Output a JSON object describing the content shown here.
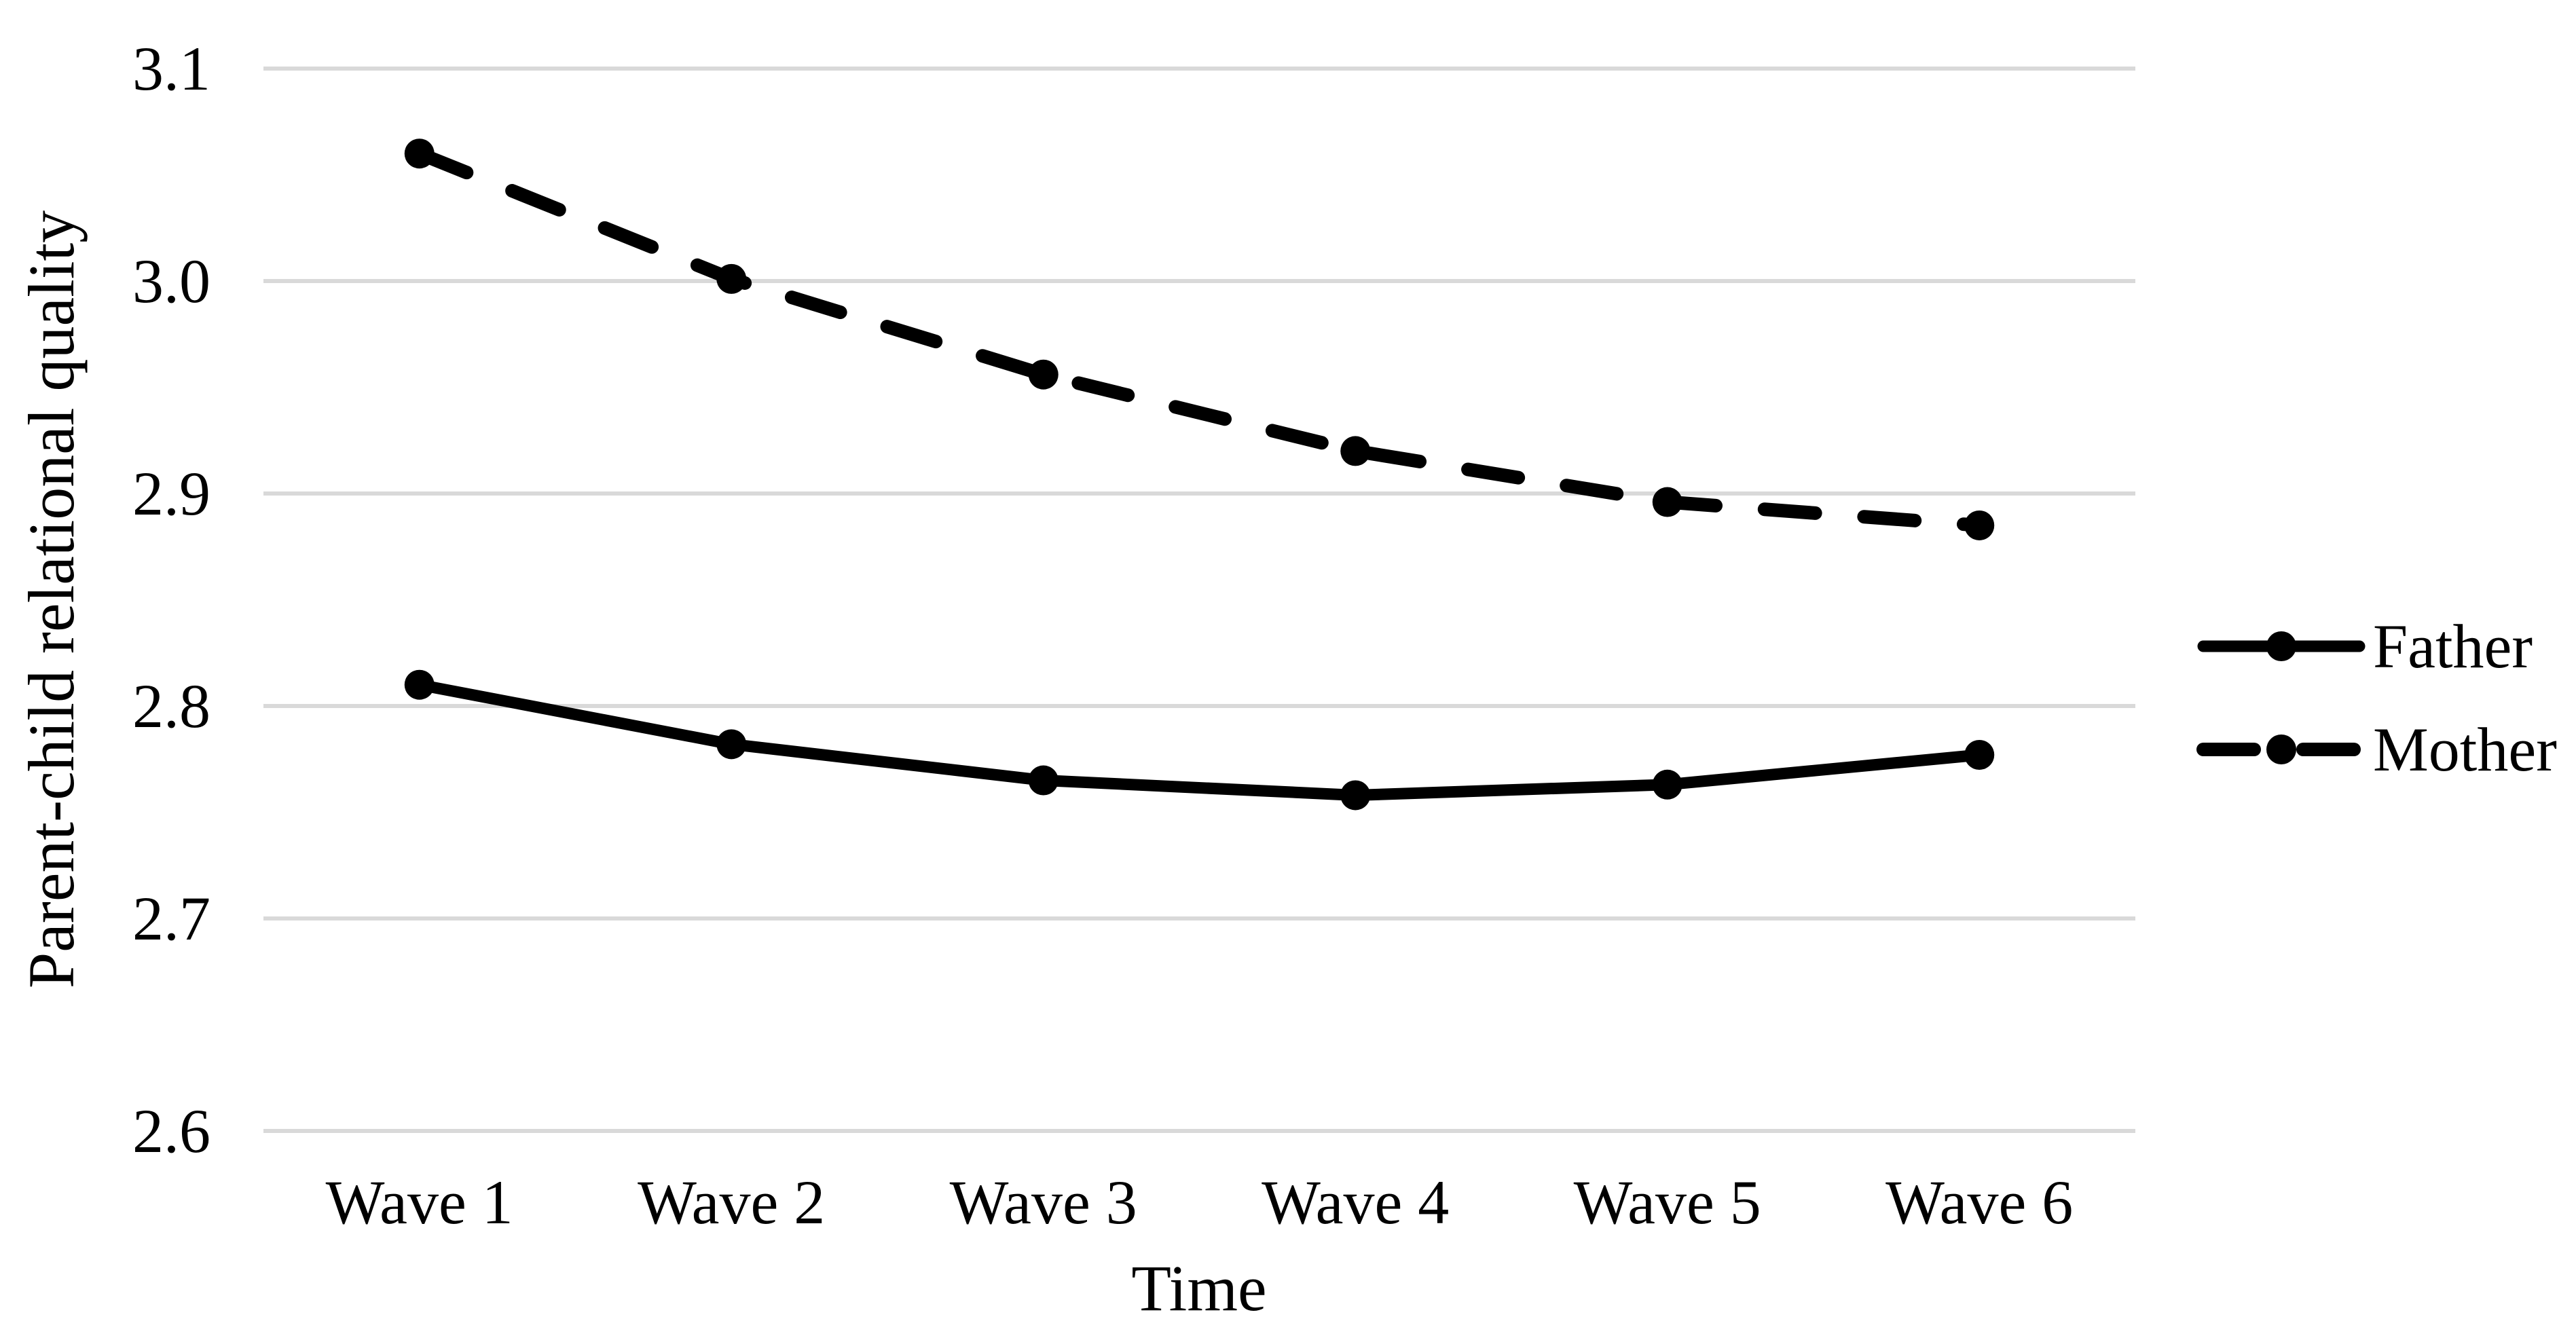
{
  "figure": {
    "background_color": "#ffffff",
    "text_color": "#000000",
    "gridline_color": "#d9d9d9",
    "series_color": "#000000"
  },
  "axes": {
    "y_title": "Parent-child relational quality",
    "x_title": "Time"
  },
  "legend": {
    "items": [
      {
        "label": "Father",
        "line_style": "solid",
        "marker": "circle"
      },
      {
        "label": "Mother",
        "line_style": "dashed",
        "marker": "circle"
      }
    ]
  },
  "chart_data": {
    "type": "line",
    "title": "",
    "xlabel": "Time",
    "ylabel": "Parent-child relational quality",
    "categories": [
      "Wave 1",
      "Wave 2",
      "Wave 3",
      "Wave 4",
      "Wave 5",
      "Wave 6"
    ],
    "series": [
      {
        "name": "Father",
        "style": "solid",
        "color": "#000000",
        "values": [
          2.81,
          2.782,
          2.765,
          2.758,
          2.763,
          2.777
        ]
      },
      {
        "name": "Mother",
        "style": "dashed",
        "color": "#000000",
        "values": [
          3.06,
          3.001,
          2.956,
          2.92,
          2.896,
          2.885
        ]
      }
    ],
    "ylim": [
      2.6,
      3.1
    ],
    "yticks": [
      {
        "v": 3.1,
        "label": "3.1"
      },
      {
        "v": 3.0,
        "label": "3.0"
      },
      {
        "v": 2.9,
        "label": "2.9"
      },
      {
        "v": 2.8,
        "label": "2.8"
      },
      {
        "v": 2.7,
        "label": "2.7"
      },
      {
        "v": 2.6,
        "label": "2.6"
      }
    ],
    "grid": "horizontal",
    "legend_position": "right"
  }
}
